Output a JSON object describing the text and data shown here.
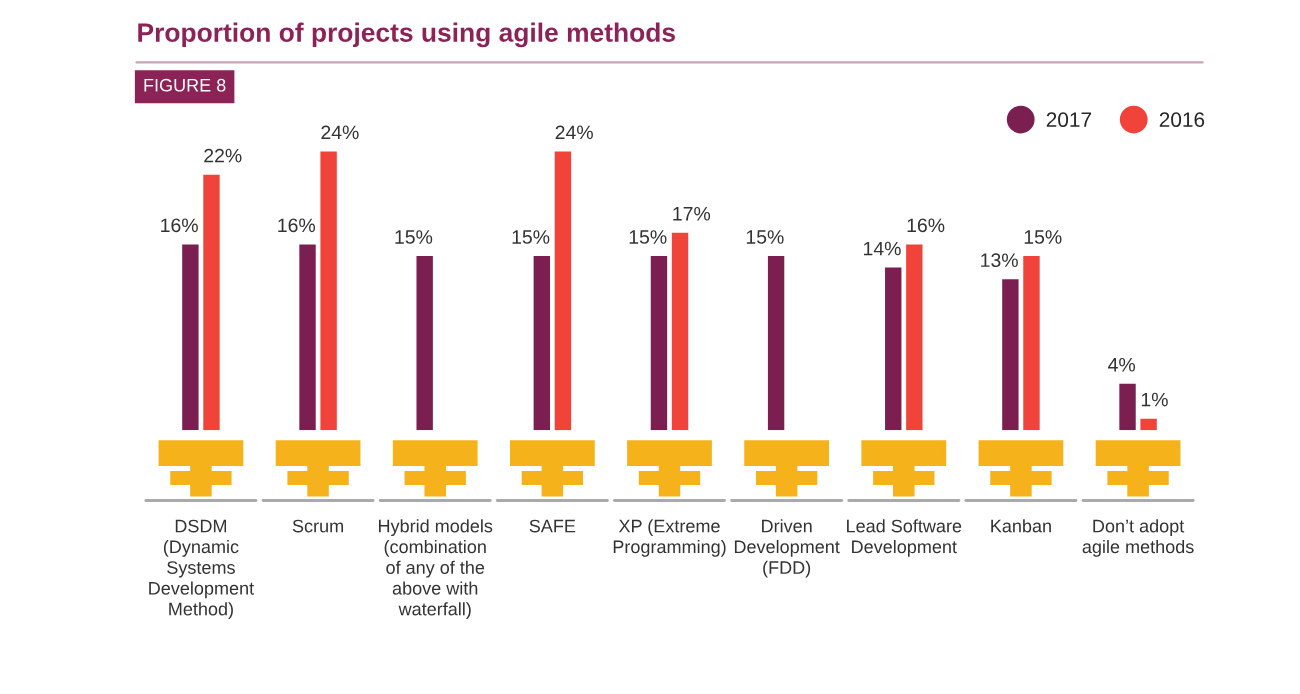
{
  "chart_data": {
    "type": "bar",
    "title": "Proportion of projects using agile methods",
    "annotations": [
      "FIGURE 8"
    ],
    "categories": [
      "DSDM\n(Dynamic\nSystems\nDevelopment\nMethod)",
      "Scrum",
      "Hybrid models\n(combination\nof any of the\nabove with\nwaterfall)",
      "SAFE",
      "XP (Extreme\nProgramming)",
      "Driven\nDevelopment\n(FDD)",
      "Lead Software\nDevelopment",
      "Kanban",
      "Don’t adopt\nagile methods"
    ],
    "series": [
      {
        "name": "2017",
        "color": "#7a1f4f",
        "values": [
          16,
          16,
          15,
          15,
          15,
          15,
          14,
          13,
          4
        ],
        "value_labels": [
          "16%",
          "16%",
          "15%",
          "15%",
          "15%",
          "15%",
          "14%",
          "13%",
          "4%"
        ]
      },
      {
        "name": "2016",
        "color": "#f0433a",
        "values": [
          22,
          24,
          null,
          24,
          17,
          null,
          16,
          15,
          1
        ],
        "value_labels": [
          "22%",
          "24%",
          null,
          "24%",
          "17%",
          null,
          "16%",
          "15%",
          "1%"
        ]
      }
    ],
    "legend": "top right",
    "grid": false
  }
}
